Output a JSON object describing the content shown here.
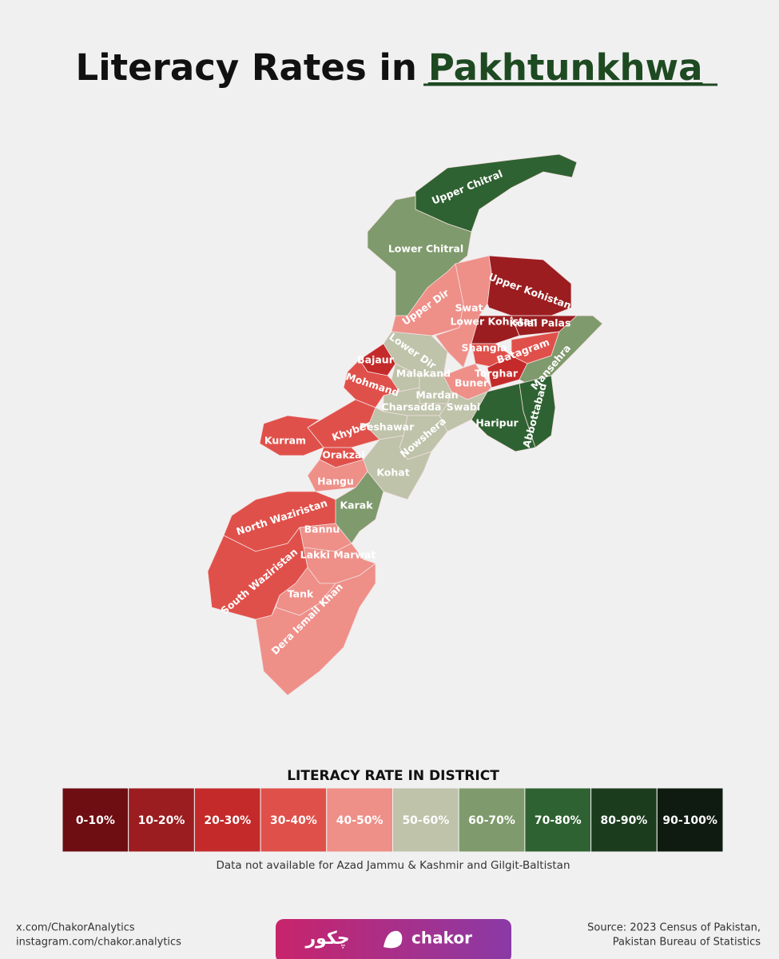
{
  "title": {
    "lead": "Literacy Rates in",
    "highlight": "Pakhtunkhwa"
  },
  "districts": [
    {
      "name": "Upper Chitral",
      "range": "70-80%"
    },
    {
      "name": "Lower Chitral",
      "range": "60-70%"
    },
    {
      "name": "Upper Dir",
      "range": "40-50%"
    },
    {
      "name": "Swat",
      "range": "40-50%"
    },
    {
      "name": "Upper Kohistan",
      "range": "10-20%"
    },
    {
      "name": "Lower Kohistan",
      "range": "10-20%"
    },
    {
      "name": "Kolai Palas",
      "range": "10-20%"
    },
    {
      "name": "Shangla",
      "range": "30-40%"
    },
    {
      "name": "Batagram",
      "range": "30-40%"
    },
    {
      "name": "Torghar",
      "range": "20-30%"
    },
    {
      "name": "Mansehra",
      "range": "60-70%"
    },
    {
      "name": "Abbottabad",
      "range": "70-80%"
    },
    {
      "name": "Haripur",
      "range": "70-80%"
    },
    {
      "name": "Lower Dir",
      "range": "50-60%"
    },
    {
      "name": "Bajaur",
      "range": "20-30%"
    },
    {
      "name": "Malakand",
      "range": "50-60%"
    },
    {
      "name": "Buner",
      "range": "40-50%"
    },
    {
      "name": "Mardan",
      "range": "50-60%"
    },
    {
      "name": "Charsadda",
      "range": "50-60%"
    },
    {
      "name": "Swabi",
      "range": "50-60%"
    },
    {
      "name": "Mohmand",
      "range": "30-40%"
    },
    {
      "name": "Peshawar",
      "range": "50-60%"
    },
    {
      "name": "Nowshera",
      "range": "50-60%"
    },
    {
      "name": "Khyber",
      "range": "30-40%"
    },
    {
      "name": "Kurram",
      "range": "30-40%"
    },
    {
      "name": "Orakzai",
      "range": "30-40%"
    },
    {
      "name": "Hangu",
      "range": "40-50%"
    },
    {
      "name": "Kohat",
      "range": "50-60%"
    },
    {
      "name": "Karak",
      "range": "60-70%"
    },
    {
      "name": "North Waziristan",
      "range": "30-40%"
    },
    {
      "name": "Bannu",
      "range": "40-50%"
    },
    {
      "name": "Lakki Marwat",
      "range": "40-50%"
    },
    {
      "name": "South Waziristan",
      "range": "30-40%"
    },
    {
      "name": "Tank",
      "range": "40-50%"
    },
    {
      "name": "Dera Ismail Khan",
      "range": "40-50%"
    }
  ],
  "legend": {
    "title": "LITERACY RATE IN DISTRICT",
    "bins": [
      {
        "label": "0-10%",
        "color": "#6e0d12"
      },
      {
        "label": "10-20%",
        "color": "#9b1d20"
      },
      {
        "label": "20-30%",
        "color": "#c42a2a"
      },
      {
        "label": "30-40%",
        "color": "#e0504a"
      },
      {
        "label": "40-50%",
        "color": "#ee8f88"
      },
      {
        "label": "50-60%",
        "color": "#bec3aa"
      },
      {
        "label": "60-70%",
        "color": "#7f9a6c"
      },
      {
        "label": "70-80%",
        "color": "#2f6232"
      },
      {
        "label": "80-90%",
        "color": "#1b3d1e"
      },
      {
        "label": "90-100%",
        "color": "#0f1b10"
      }
    ],
    "note": "Data not available for Azad Jammu & Kashmir and Gilgit-Baltistan"
  },
  "footer": {
    "links": [
      "x.com/ChakorAnalytics",
      "instagram.com/chakor.analytics"
    ],
    "brand_urdu": "چکور",
    "brand": "chakor",
    "source": [
      "Source: 2023 Census of Pakistan,",
      "Pakistan Bureau of Statistics"
    ]
  }
}
